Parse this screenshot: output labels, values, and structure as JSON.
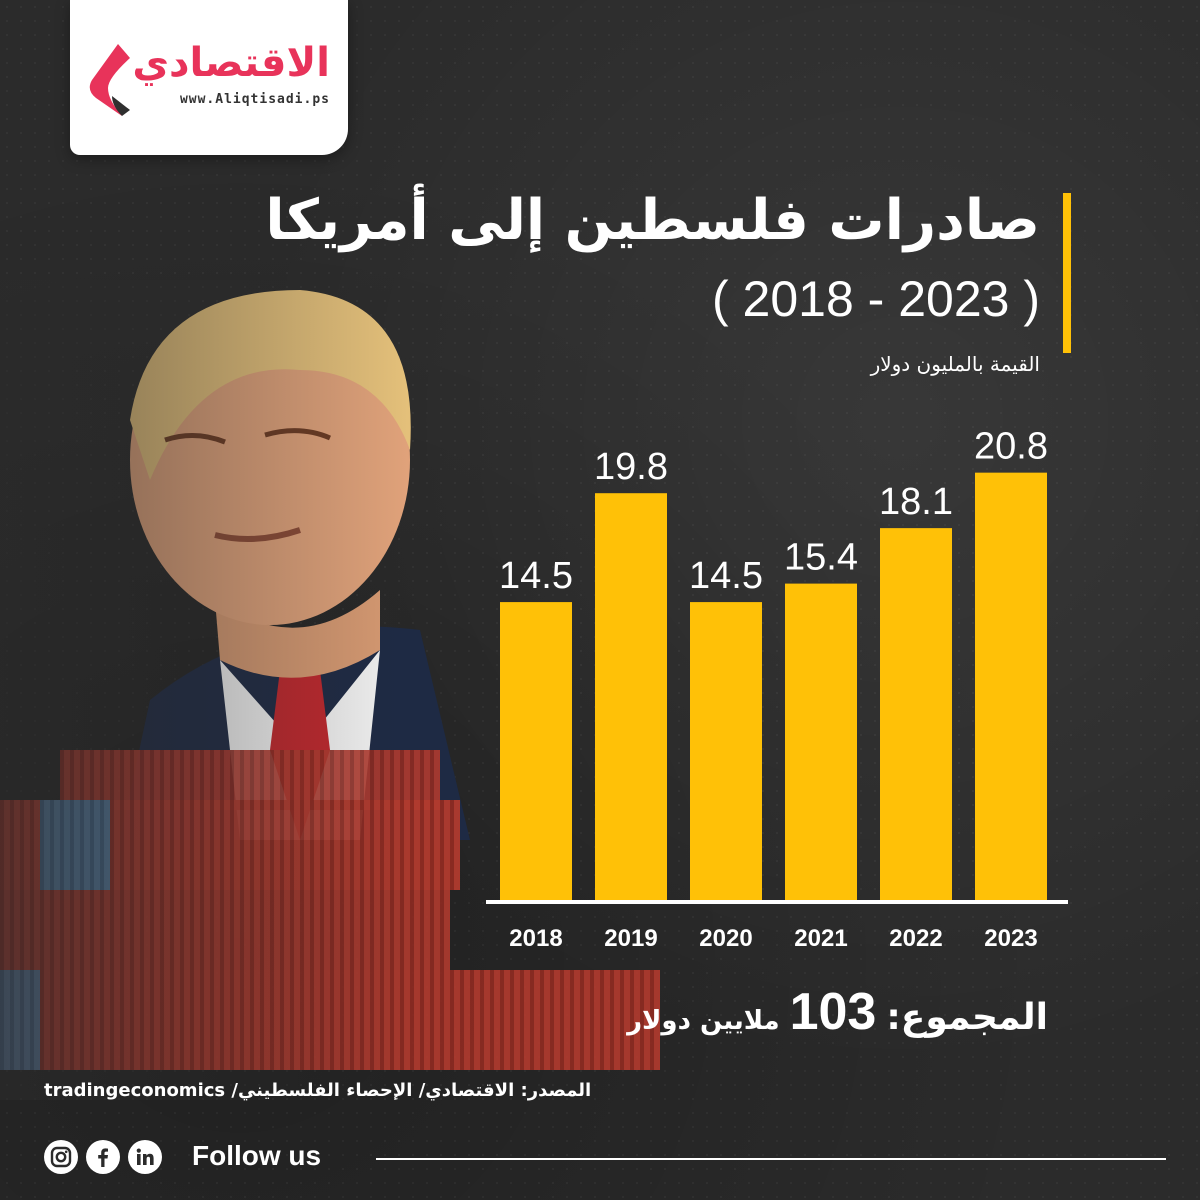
{
  "brand": {
    "name": "الاقتصادي",
    "url": "www.Aliqtisadi.ps",
    "accent_color": "#e8335a"
  },
  "title": {
    "main": "صادرات فلسطين إلى أمريكا",
    "years": "( 2018 - 2023 )",
    "unit": "القيمة بالمليون دولار"
  },
  "chart_data": {
    "type": "bar",
    "categories": [
      "2018",
      "2019",
      "2020",
      "2021",
      "2022",
      "2023"
    ],
    "values": [
      14.5,
      19.8,
      14.5,
      15.4,
      18.1,
      20.8
    ],
    "value_labels": [
      "14.5",
      "19.8",
      "14.5",
      "15.4",
      "18.1",
      "20.8"
    ],
    "ylabel": "القيمة بالمليون دولار",
    "ylim": [
      0,
      22
    ],
    "bar_color": "#ffc107",
    "grid": false,
    "legend": "none"
  },
  "total": {
    "label": "المجموع:",
    "value": "103",
    "unit": "ملايين دولار"
  },
  "source": {
    "text": "المصدر: الاقتصادي/ الإحصاء الفلسطيني/ tradingeconomics"
  },
  "footer": {
    "follow": "Follow us",
    "icons": [
      "instagram-icon",
      "facebook-icon",
      "linkedin-icon"
    ]
  }
}
